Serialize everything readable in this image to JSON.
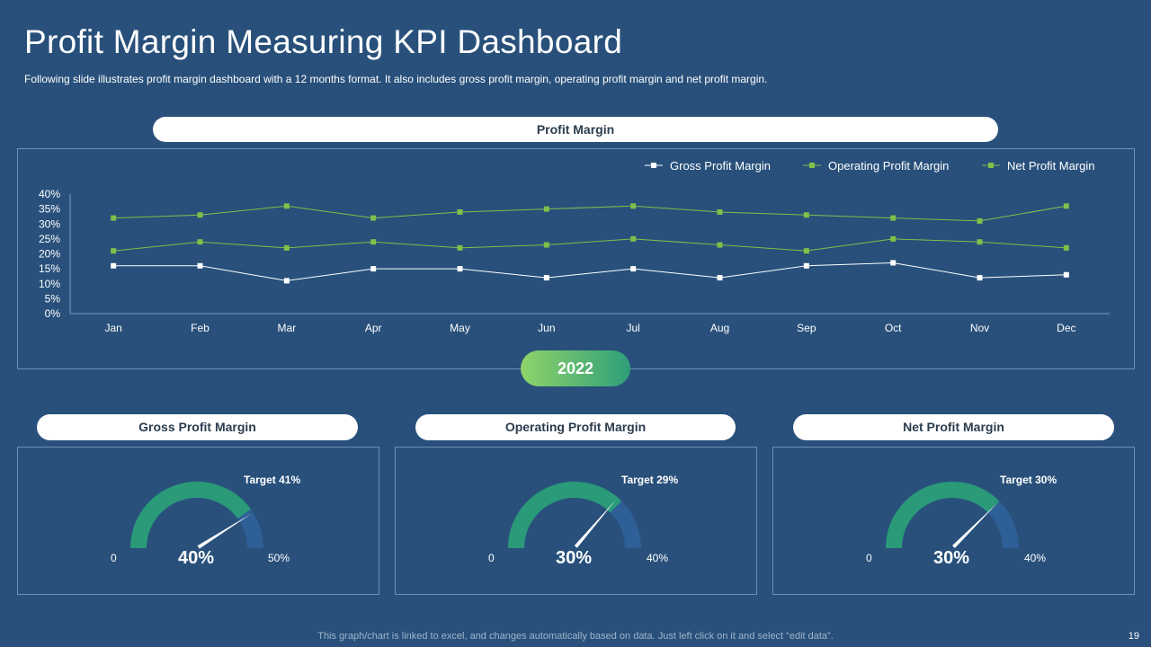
{
  "slide": {
    "title": "Profit Margin Measuring KPI Dashboard",
    "subtitle": "Following slide illustrates profit margin dashboard with a 12 months format. It also includes gross profit margin, operating profit margin and net profit margin.",
    "year": "2022",
    "footer": "This graph/chart is linked to excel,  and changes automatically based on data. Just left click on it and select “edit data”.",
    "page_number": "19"
  },
  "chart_header": "Profit Margin",
  "chart_data": {
    "type": "line",
    "title": "",
    "x": [
      "Jan",
      "Feb",
      "Mar",
      "Apr",
      "May",
      "Jun",
      "Jul",
      "Aug",
      "Sep",
      "Oct",
      "Nov",
      "Dec"
    ],
    "ylim": [
      0,
      40
    ],
    "yticks": [
      0,
      5,
      10,
      15,
      20,
      25,
      30,
      35,
      40
    ],
    "ytick_labels": [
      "0%",
      "5%",
      "10%",
      "15%",
      "20%",
      "25%",
      "30%",
      "35%",
      "40%"
    ],
    "legend_position": "top-right",
    "grid": false,
    "series": [
      {
        "name": "Gross Profit Margin",
        "color": "#ffffff",
        "values": [
          16,
          16,
          11,
          15,
          15,
          12,
          15,
          12,
          16,
          17,
          12,
          13
        ]
      },
      {
        "name": "Operating Profit Margin",
        "color": "#7dc14a",
        "values": [
          21,
          24,
          22,
          24,
          22,
          23,
          25,
          23,
          21,
          25,
          24,
          22
        ]
      },
      {
        "name": "Net Profit Margin",
        "color": "#7dc14a",
        "values": [
          32,
          33,
          36,
          32,
          34,
          35,
          36,
          34,
          33,
          32,
          31,
          36
        ]
      }
    ]
  },
  "gauges": [
    {
      "title": "Gross Profit Margin",
      "target_label": "Target 41%",
      "target": 41,
      "min_label": "0",
      "max_label": "50%",
      "min": 0,
      "max": 50,
      "value": 40,
      "value_label": "40%"
    },
    {
      "title": "Operating Profit Margin",
      "target_label": "Target 29%",
      "target": 29,
      "min_label": "0",
      "max_label": "40%",
      "min": 0,
      "max": 40,
      "value": 30,
      "value_label": "30%"
    },
    {
      "title": "Net Profit Margin",
      "target_label": "Target 30%",
      "target": 30,
      "min_label": "0",
      "max_label": "40%",
      "min": 0,
      "max": 40,
      "value": 30,
      "value_label": "30%"
    }
  ],
  "colors": {
    "background": "#28507b",
    "gauge_fill": "#2a9a78",
    "gauge_track": "#2f5f97",
    "accent_green": "#7dc14a"
  }
}
